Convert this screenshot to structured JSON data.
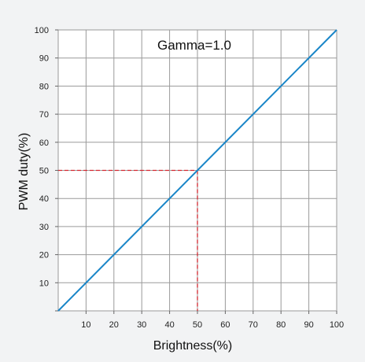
{
  "chart_data": {
    "type": "line",
    "title": "Gamma=1.0",
    "xlabel": "Brightness(%)",
    "ylabel": "PWM duty(%)",
    "xlim": [
      0,
      100
    ],
    "ylim": [
      0,
      100
    ],
    "x_ticks": [
      "10",
      "20",
      "30",
      "40",
      "50",
      "60",
      "70",
      "80",
      "90",
      "100"
    ],
    "y_ticks": [
      "10",
      "20",
      "30",
      "40",
      "50",
      "60",
      "70",
      "80",
      "90",
      "100"
    ],
    "grid": true,
    "series": [
      {
        "x": [
          0,
          100
        ],
        "y": [
          0,
          100
        ],
        "color": "#1a86c8"
      }
    ],
    "reference_point": {
      "x": 50,
      "y": 50,
      "style": "dashed",
      "color": "#d4262f"
    },
    "plot_background": "#ffffff",
    "grid_color": "#9a9a9a",
    "page_background": "#f2f3f4"
  }
}
